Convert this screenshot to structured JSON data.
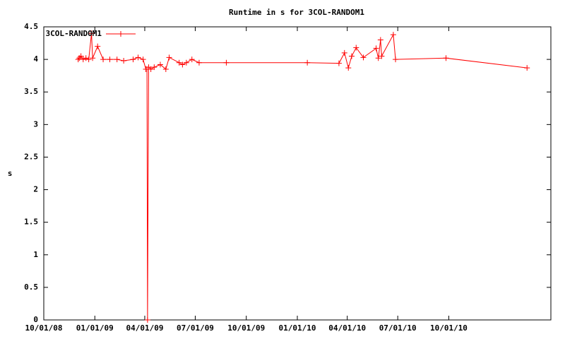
{
  "chart_data": {
    "type": "line",
    "title": "Runtime in s for 3COL-RANDOM1",
    "y_label": "s",
    "x": [
      "2008-12-02",
      "2008-12-04",
      "2008-12-07",
      "2008-12-11",
      "2008-12-16",
      "2008-12-21",
      "2008-12-26",
      "2008-12-28",
      "2009-01-06",
      "2009-01-16",
      "2009-01-28",
      "2009-02-10",
      "2009-02-22",
      "2009-03-11",
      "2009-03-20",
      "2009-03-29",
      "2009-04-03",
      "2009-04-05",
      "2009-04-06",
      "2009-04-08",
      "2009-04-12",
      "2009-04-18",
      "2009-04-29",
      "2009-05-09",
      "2009-05-15",
      "2009-06-02",
      "2009-06-08",
      "2009-06-15",
      "2009-06-25",
      "2009-07-08",
      "2009-08-26",
      "2010-01-19",
      "2010-03-17",
      "2010-03-27",
      "2010-04-03",
      "2010-04-09",
      "2010-04-17",
      "2010-04-30",
      "2010-05-23",
      "2010-05-27",
      "2010-05-31",
      "2010-06-02",
      "2010-06-23",
      "2010-06-27",
      "2010-09-26",
      "2011-02-19"
    ],
    "series": [
      {
        "name": "3COL-RANDOM1",
        "color": "#ff0000",
        "values": [
          4.0,
          4.02,
          4.05,
          4.0,
          4.02,
          4.0,
          4.4,
          4.02,
          4.2,
          4.0,
          4.0,
          4.0,
          3.98,
          4.0,
          4.03,
          4.0,
          3.85,
          3.85,
          0,
          3.88,
          3.85,
          3.88,
          3.92,
          3.85,
          4.03,
          3.95,
          3.92,
          3.95,
          4.0,
          3.95,
          3.95,
          3.95,
          3.94,
          4.1,
          3.87,
          4.05,
          4.18,
          4.03,
          4.17,
          4.02,
          4.3,
          4.05,
          4.38,
          4.0,
          4.02,
          3.87
        ]
      }
    ],
    "xlim": [
      "2008-10-01",
      "2011-04-03"
    ],
    "xticks": [
      {
        "value": "2008-10-01",
        "label": "10/01/08"
      },
      {
        "value": "2009-01-01",
        "label": "01/01/09"
      },
      {
        "value": "2009-04-01",
        "label": "04/01/09"
      },
      {
        "value": "2009-07-01",
        "label": "07/01/09"
      },
      {
        "value": "2009-10-01",
        "label": "10/01/09"
      },
      {
        "value": "2010-01-01",
        "label": "01/01/10"
      },
      {
        "value": "2010-04-01",
        "label": "04/01/10"
      },
      {
        "value": "2010-07-01",
        "label": "07/01/10"
      },
      {
        "value": "2010-10-01",
        "label": "10/01/10"
      }
    ],
    "ylim": [
      0,
      4.5
    ],
    "yticks": [
      0,
      0.5,
      1,
      1.5,
      2,
      2.5,
      3,
      3.5,
      4,
      4.5
    ],
    "legend": "top-left"
  }
}
